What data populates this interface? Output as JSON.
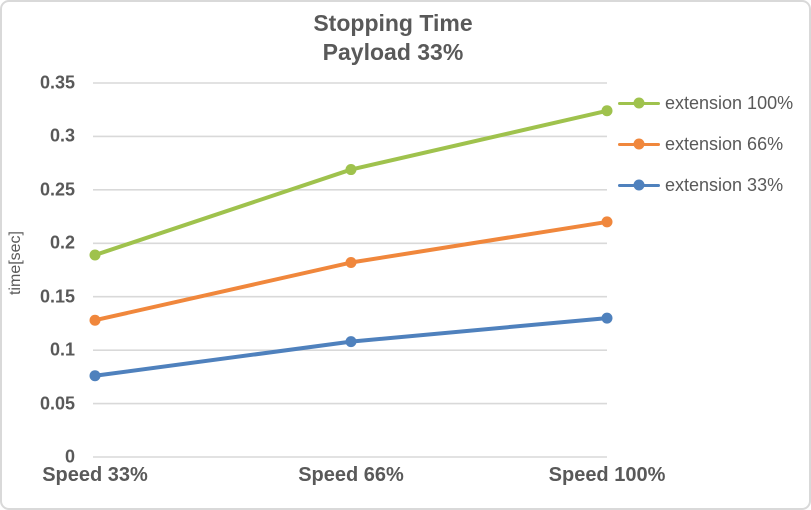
{
  "chart_data": {
    "type": "line",
    "title": "Stopping Time",
    "subtitle": "Payload 33%",
    "xlabel": "",
    "ylabel": "time[sec]",
    "categories": [
      "Speed 33%",
      "Speed 66%",
      "Speed 100%"
    ],
    "series": [
      {
        "name": "extension 100%",
        "color": "#9FC24D",
        "values": [
          0.189,
          0.269,
          0.324
        ]
      },
      {
        "name": "extension 66%",
        "color": "#F0873C",
        "values": [
          0.128,
          0.182,
          0.22
        ]
      },
      {
        "name": "extension 33%",
        "color": "#4F81BD",
        "values": [
          0.076,
          0.108,
          0.13
        ]
      }
    ],
    "ylim": [
      0,
      0.35
    ],
    "ytick_step": 0.05,
    "yticks": [
      "0",
      "0.05",
      "0.1",
      "0.15",
      "0.2",
      "0.25",
      "0.3",
      "0.35"
    ],
    "grid": true,
    "legend_position": "right",
    "colors": {
      "text": "#595959",
      "gridline": "#D9D9D9",
      "border": "#D9D9D9",
      "background": "#FFFFFF"
    }
  }
}
